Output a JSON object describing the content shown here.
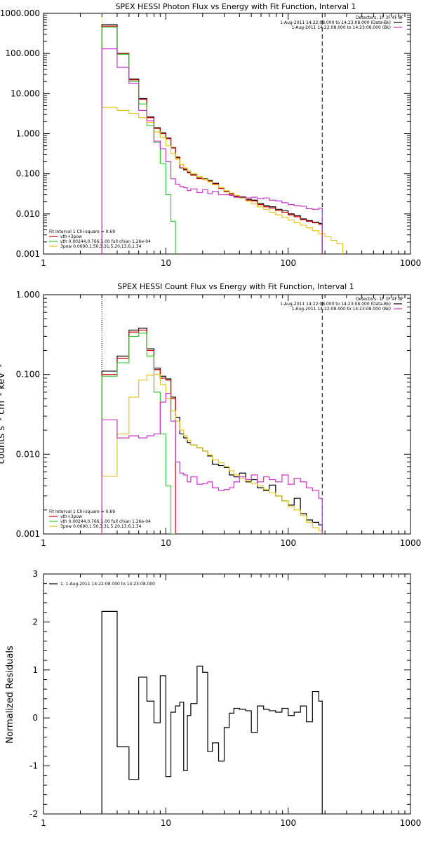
{
  "panels": [
    {
      "title": "SPEX HESSI Photon Flux vs Energy with Fit Function, Interval 1",
      "ylabel": "",
      "yscale": "log",
      "xlim": [
        1,
        1000
      ],
      "ylim": [
        0.001,
        1000
      ],
      "x_ticks": [
        "1",
        "10",
        "100",
        "1000"
      ],
      "y_ticks": [
        "0.001",
        "0.010",
        "0.100",
        "1.000",
        "10.000",
        "100.000",
        "1000.000"
      ],
      "legend_right": {
        "detectors": "Detectors: 1F 3F 4F 8F",
        "lines": [
          {
            "text": "1-Aug-2011 14:22:08.000 to 14:23:08.000 (Data-Bk)",
            "color": "#000000"
          },
          {
            "text": "1-Aug-2011 14:22:08.000 to 14:23:08.000 (Bk)",
            "color": "#cc33cc"
          }
        ]
      },
      "legend_left": {
        "header": "Fit Interval 1    Chi-square = 0.69",
        "lines": [
          {
            "text": "vth+3pow",
            "color": "#cc0000"
          },
          {
            "text": "vth 0.00244,0.766,1.00  full chian 1.26e-04",
            "color": "#33cc33"
          },
          {
            "text": "3pow 0.0690,1.50,3.31,5.20,13.6,1.34",
            "color": "#e6c619"
          }
        ]
      },
      "vlines": [
        {
          "x": 3,
          "style": "dotted",
          "color": "#e6a000"
        },
        {
          "x": 190,
          "style": "dashed",
          "color": "#000000"
        }
      ]
    },
    {
      "title": "SPEX HESSI Count Flux vs Energy with Fit Function, Interval 1",
      "ylabel": "counts s⁻¹ cm⁻² keV⁻¹",
      "yscale": "log",
      "xlim": [
        1,
        1000
      ],
      "ylim": [
        0.001,
        1
      ],
      "x_ticks": [
        "1",
        "10",
        "100",
        "1000"
      ],
      "y_ticks": [
        "0.001",
        "0.010",
        "0.100",
        "1.000"
      ],
      "legend_right": {
        "detectors": "Detectors: 1F 3F 4F 8F",
        "lines": [
          {
            "text": "1-Aug-2011 14:22:08.000 to 14:23:08.000 (Data-Bk)",
            "color": "#000000"
          },
          {
            "text": "1-Aug-2011 14:22:08.000 to 14:23:08.000 (Bk)",
            "color": "#cc33cc"
          }
        ]
      },
      "legend_left": {
        "header": "Fit Interval 1    Chi-square = 0.69",
        "lines": [
          {
            "text": "vth+3pow",
            "color": "#cc0000"
          },
          {
            "text": "vth 0.00244,0.766,1.00  full chian 1.26e-04",
            "color": "#33cc33"
          },
          {
            "text": "3pow 0.0690,1.50,3.31,5.20,13.6,1.34",
            "color": "#e6c619"
          }
        ]
      },
      "vlines": [
        {
          "x": 3,
          "style": "dotted",
          "color": "#000000"
        },
        {
          "x": 190,
          "style": "dashed",
          "color": "#000000"
        }
      ]
    },
    {
      "title": "",
      "ylabel": "Normalized Residuals",
      "yscale": "linear",
      "xlim": [
        1,
        1000
      ],
      "ylim": [
        -2,
        3
      ],
      "x_ticks": [
        "1",
        "10",
        "100",
        "1000"
      ],
      "y_ticks": [
        "-2",
        "-1",
        "0",
        "1",
        "2",
        "3"
      ],
      "legend_left": {
        "header": "",
        "lines": [
          {
            "text": "1.  1-Aug-2011 14:22:08.000 to 14:23:08.000",
            "color": "#000000"
          }
        ]
      },
      "vlines": []
    }
  ],
  "chart_data": [
    {
      "type": "line",
      "title": "SPEX HESSI Photon Flux vs Energy with Fit Function, Interval 1",
      "xscale": "log",
      "yscale": "log",
      "xlim": [
        1,
        1000
      ],
      "ylim": [
        0.001,
        1000
      ],
      "grid": false,
      "legend": "top-right and bottom-left",
      "series": [
        {
          "name": "1-Aug-2011 14:22:08.000 to 14:23:08.000 (Data-Bk)",
          "color": "#000000",
          "edges": [
            3,
            4,
            5,
            6,
            7,
            8,
            9,
            10,
            11,
            12,
            13,
            14,
            15,
            16,
            18,
            20,
            22,
            24,
            27,
            30,
            33,
            36,
            40,
            45,
            50,
            56,
            63,
            70,
            79,
            89,
            100,
            112,
            126,
            141,
            158,
            178,
            190
          ],
          "values": [
            520,
            100,
            23,
            7.5,
            2.6,
            1.4,
            1.05,
            0.78,
            0.45,
            0.26,
            0.14,
            0.13,
            0.11,
            0.095,
            0.078,
            0.075,
            0.068,
            0.058,
            0.044,
            0.037,
            0.032,
            0.028,
            0.026,
            0.023,
            0.022,
            0.018,
            0.016,
            0.015,
            0.013,
            0.012,
            0.01,
            0.009,
            0.0075,
            0.0068,
            0.0062,
            0.0058
          ]
        },
        {
          "name": "vth+3pow",
          "color": "#cc0000",
          "edges": [
            3,
            4,
            5,
            6,
            7,
            8,
            9,
            10,
            11,
            12,
            13,
            14,
            15,
            16,
            18,
            20,
            22,
            24,
            27,
            30,
            33,
            36,
            40,
            45,
            50,
            56,
            63,
            70,
            79,
            89,
            100,
            112,
            126,
            141,
            158,
            178,
            190
          ],
          "values": [
            480,
            98,
            22,
            7.2,
            2.5,
            1.35,
            1.0,
            0.75,
            0.44,
            0.25,
            0.14,
            0.125,
            0.105,
            0.092,
            0.076,
            0.072,
            0.065,
            0.056,
            0.043,
            0.036,
            0.031,
            0.027,
            0.025,
            0.022,
            0.021,
            0.017,
            0.015,
            0.014,
            0.012,
            0.011,
            0.0095,
            0.0085,
            0.0072,
            0.0065,
            0.006,
            0.0055
          ]
        },
        {
          "name": "vth 0.00244,0.766,1.00  full chian 1.26e-04",
          "color": "#33cc33",
          "edges": [
            3,
            4,
            5,
            6,
            7,
            8,
            9,
            10,
            11,
            12
          ],
          "values": [
            450,
            95,
            20,
            5.5,
            1.6,
            0.6,
            0.18,
            0.03,
            0.0065
          ]
        },
        {
          "name": "3pow 0.0690,1.50,3.31,5.20,13.6,1.34",
          "color": "#e6c619",
          "edges": [
            3,
            4,
            5,
            6,
            7,
            8,
            9,
            10,
            11,
            12,
            13,
            14,
            15,
            16,
            18,
            20,
            22,
            24,
            27,
            30,
            33,
            36,
            40,
            45,
            50,
            56,
            63,
            70,
            79,
            89,
            100,
            112,
            126,
            141,
            158,
            178,
            200,
            224,
            250,
            280
          ],
          "values": [
            4.5,
            3.8,
            3.2,
            2.5,
            1.9,
            1.1,
            0.8,
            0.5,
            0.32,
            0.23,
            0.17,
            0.14,
            0.12,
            0.1,
            0.085,
            0.073,
            0.063,
            0.053,
            0.045,
            0.038,
            0.033,
            0.029,
            0.025,
            0.021,
            0.018,
            0.015,
            0.013,
            0.011,
            0.0095,
            0.0082,
            0.007,
            0.006,
            0.0052,
            0.0045,
            0.0038,
            0.0032,
            0.0027,
            0.0022,
            0.0018
          ]
        },
        {
          "name": "1-Aug-2011 14:22:08.000 to 14:23:08.000 (Bk)",
          "color": "#cc33cc",
          "edges": [
            3,
            4,
            5,
            6,
            7,
            8,
            9,
            10,
            11,
            12,
            13,
            14,
            15,
            16,
            18,
            20,
            22,
            24,
            27,
            30,
            33,
            36,
            40,
            45,
            50,
            56,
            63,
            70,
            79,
            89,
            100,
            112,
            126,
            141,
            158,
            178,
            190
          ],
          "values": [
            130,
            45,
            18,
            3.8,
            2.1,
            0.65,
            0.42,
            0.2,
            0.075,
            0.055,
            0.048,
            0.045,
            0.038,
            0.042,
            0.034,
            0.04,
            0.032,
            0.036,
            0.03,
            0.03,
            0.029,
            0.026,
            0.027,
            0.025,
            0.026,
            0.024,
            0.025,
            0.022,
            0.021,
            0.019,
            0.017,
            0.016,
            0.0155,
            0.0135,
            0.013,
            0.014
          ]
        }
      ]
    },
    {
      "type": "line",
      "title": "SPEX HESSI Count Flux vs Energy with Fit Function, Interval 1",
      "ylabel": "counts s⁻¹ cm⁻² keV⁻¹",
      "xscale": "log",
      "yscale": "log",
      "xlim": [
        1,
        1000
      ],
      "ylim": [
        0.001,
        1
      ],
      "grid": false,
      "legend": "top-right and bottom-left",
      "series": [
        {
          "name": "1-Aug-2011 14:22:08.000 to 14:23:08.000 (Data-Bk)",
          "color": "#000000",
          "edges": [
            3,
            4,
            5,
            6,
            7,
            8,
            9,
            10,
            11,
            12,
            13,
            14,
            15,
            16,
            18,
            20,
            22,
            24,
            27,
            30,
            33,
            36,
            40,
            45,
            50,
            56,
            63,
            70,
            79,
            89,
            100,
            112,
            126,
            141,
            158,
            178,
            190
          ],
          "values": [
            0.11,
            0.17,
            0.36,
            0.38,
            0.21,
            0.12,
            0.095,
            0.088,
            0.052,
            0.029,
            0.018,
            0.016,
            0.014,
            0.013,
            0.012,
            0.011,
            0.0095,
            0.0075,
            0.0072,
            0.0068,
            0.0055,
            0.0052,
            0.0058,
            0.0045,
            0.0048,
            0.0038,
            0.0035,
            0.0041,
            0.003,
            0.0026,
            0.0023,
            0.0028,
            0.0018,
            0.0015,
            0.0014,
            0.0013
          ]
        },
        {
          "name": "vth+3pow",
          "color": "#cc0000",
          "edges": [
            3,
            4,
            5,
            6,
            7,
            8,
            9,
            10,
            11,
            12
          ],
          "values": [
            0.1,
            0.16,
            0.34,
            0.36,
            0.2,
            0.115,
            0.09,
            0.085,
            0.05
          ]
        },
        {
          "name": "vth 0.00244,0.766,1.00  full chian 1.26e-04",
          "color": "#33cc33",
          "edges": [
            3,
            4,
            5,
            6,
            7,
            8,
            9,
            10,
            11,
            12
          ],
          "values": [
            0.095,
            0.14,
            0.3,
            0.33,
            0.17,
            0.06,
            0.018,
            0.004,
            0.0009
          ]
        },
        {
          "name": "3pow 0.0690,1.50,3.31,5.20,13.6,1.34",
          "color": "#e6c619",
          "edges": [
            3,
            4,
            5,
            6,
            7,
            8,
            9,
            10,
            11,
            12,
            13,
            14,
            15,
            16,
            18,
            20,
            22,
            24,
            27,
            30,
            33,
            36,
            40,
            45,
            50,
            56,
            63,
            70,
            79,
            89,
            100,
            112,
            126,
            141,
            158,
            178,
            190
          ],
          "values": [
            0.0053,
            0.018,
            0.052,
            0.085,
            0.098,
            0.1,
            0.075,
            0.05,
            0.035,
            0.026,
            0.02,
            0.017,
            0.015,
            0.013,
            0.012,
            0.011,
            0.0098,
            0.0085,
            0.0078,
            0.007,
            0.0062,
            0.0055,
            0.005,
            0.0046,
            0.0043,
            0.004,
            0.0036,
            0.0033,
            0.003,
            0.0026,
            0.0022,
            0.002,
            0.0017,
            0.0014,
            0.0012,
            0.0011
          ]
        },
        {
          "name": "1-Aug-2011 14:22:08.000 to 14:23:08.000 (Bk)",
          "color": "#cc33cc",
          "edges": [
            3,
            4,
            5,
            6,
            7,
            8,
            9,
            10,
            11,
            12,
            13,
            14,
            15,
            16,
            18,
            20,
            22,
            24,
            27,
            30,
            33,
            36,
            40,
            45,
            50,
            56,
            63,
            70,
            79,
            89,
            100,
            112,
            126,
            141,
            158,
            178,
            190
          ],
          "values": [
            0.027,
            0.016,
            0.017,
            0.016,
            0.017,
            0.018,
            0.045,
            0.058,
            0.026,
            0.008,
            0.0058,
            0.0055,
            0.0045,
            0.0052,
            0.0042,
            0.0043,
            0.0045,
            0.0038,
            0.0035,
            0.0036,
            0.0038,
            0.0045,
            0.0052,
            0.0048,
            0.0055,
            0.0045,
            0.0052,
            0.0048,
            0.0045,
            0.0055,
            0.0042,
            0.005,
            0.0045,
            0.0038,
            0.0035,
            0.0028
          ]
        }
      ]
    },
    {
      "type": "line",
      "title": "",
      "ylabel": "Normalized Residuals",
      "xscale": "log",
      "yscale": "linear",
      "xlim": [
        1,
        1000
      ],
      "ylim": [
        -2,
        3
      ],
      "grid": false,
      "legend": "top-left",
      "series": [
        {
          "name": "1.  1-Aug-2011 14:22:08.000 to 14:23:08.000",
          "color": "#000000",
          "edges": [
            3,
            4,
            5,
            6,
            7,
            8,
            9,
            10,
            11,
            12,
            13,
            14,
            15,
            16,
            18,
            20,
            22,
            24,
            27,
            30,
            33,
            36,
            40,
            45,
            50,
            56,
            63,
            70,
            79,
            89,
            100,
            112,
            126,
            141,
            158,
            178,
            190
          ],
          "values": [
            2.22,
            -0.6,
            -1.28,
            0.85,
            0.35,
            -0.1,
            0.88,
            -1.22,
            0.12,
            0.25,
            0.33,
            -1.1,
            0.05,
            0.3,
            1.08,
            0.95,
            -0.7,
            -0.52,
            -0.9,
            -0.2,
            0.1,
            0.2,
            0.18,
            0.15,
            -0.3,
            0.25,
            0.18,
            0.15,
            0.12,
            0.2,
            0.05,
            0.12,
            0.25,
            -0.08,
            0.55,
            0.35
          ]
        }
      ]
    }
  ]
}
